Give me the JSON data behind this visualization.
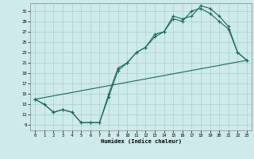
{
  "xlabel": "Humidex (Indice chaleur)",
  "bg_color": "#ceeaea",
  "line_color": "#1a6b5a",
  "grid_color": "#aacfcf",
  "xlim": [
    -0.5,
    23.5
  ],
  "ylim": [
    8,
    32.5
  ],
  "xticks": [
    0,
    1,
    2,
    3,
    4,
    5,
    6,
    7,
    8,
    9,
    10,
    11,
    12,
    13,
    14,
    15,
    16,
    17,
    18,
    19,
    20,
    21,
    22,
    23
  ],
  "yticks": [
    9,
    11,
    13,
    15,
    17,
    19,
    21,
    23,
    25,
    27,
    29,
    31
  ],
  "line1_x": [
    0,
    1,
    2,
    3,
    4,
    5,
    6,
    7,
    8,
    9,
    10,
    11,
    12,
    13,
    14,
    15,
    16,
    17,
    18,
    19,
    20,
    21,
    22,
    23
  ],
  "line1_y": [
    14,
    13,
    11.5,
    12,
    11.5,
    9.5,
    9.5,
    9.5,
    15,
    20,
    21,
    23,
    24,
    26.5,
    27,
    30,
    29.5,
    30,
    32,
    31.5,
    30,
    28,
    23,
    21.5
  ],
  "line2_x": [
    0,
    1,
    2,
    3,
    4,
    5,
    6,
    7,
    8,
    9,
    10,
    11,
    12,
    13,
    14,
    15,
    16,
    17,
    18,
    19,
    20,
    21,
    22,
    23
  ],
  "line2_y": [
    14,
    13,
    11.5,
    12,
    11.5,
    9.5,
    9.5,
    9.5,
    14.5,
    19.5,
    21,
    23,
    24,
    26,
    27,
    29.5,
    29,
    31,
    31.5,
    30.5,
    29,
    27.5,
    23,
    21.5
  ],
  "line3_x": [
    0,
    23
  ],
  "line3_y": [
    14,
    21.5
  ]
}
